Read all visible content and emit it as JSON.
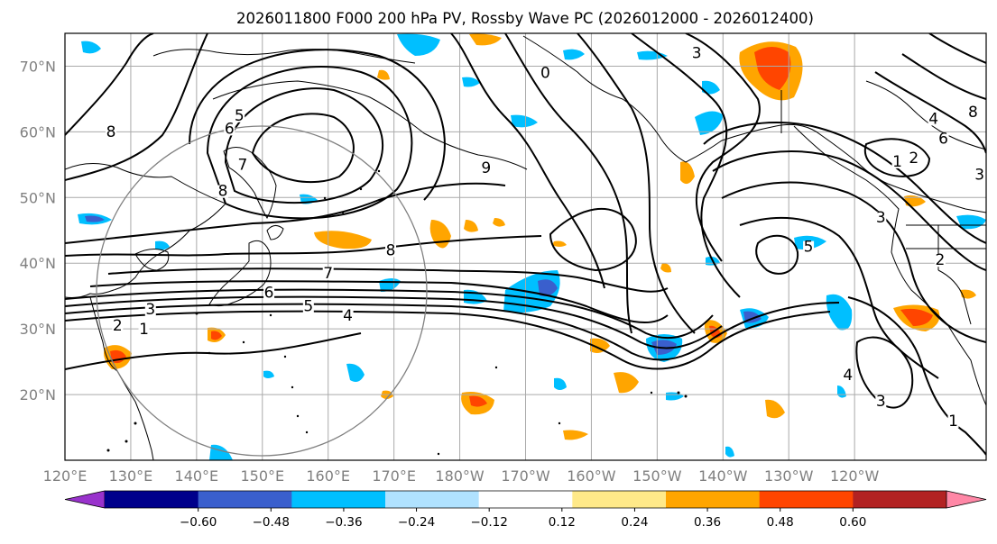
{
  "title": "2026011800 F000 200 hPa PV, Rossby Wave PC (2026012000 - 2026012400)",
  "map": {
    "lon_labels": [
      "120°E",
      "130°E",
      "140°E",
      "150°E",
      "160°E",
      "170°E",
      "180°W",
      "170°W",
      "160°W",
      "150°W",
      "140°W",
      "130°W",
      "120°W"
    ],
    "lat_labels": [
      "70°N",
      "60°N",
      "50°N",
      "40°N",
      "30°N",
      "20°N"
    ],
    "lon_values": [
      120,
      130,
      140,
      150,
      160,
      170,
      180,
      190,
      200,
      210,
      220,
      230,
      240
    ],
    "lat_values": [
      70,
      60,
      50,
      40,
      30,
      20
    ],
    "lon_range": [
      120,
      260
    ],
    "lat_range": [
      10,
      75
    ],
    "grid": true,
    "contour_labels": [
      {
        "text": "8",
        "lon": 127,
        "lat": 59.5
      },
      {
        "text": "5",
        "lon": 146.5,
        "lat": 62
      },
      {
        "text": "6",
        "lon": 145,
        "lat": 60
      },
      {
        "text": "7",
        "lon": 147,
        "lat": 54.5
      },
      {
        "text": "8",
        "lon": 144,
        "lat": 50.5
      },
      {
        "text": "9",
        "lon": 184,
        "lat": 54
      },
      {
        "text": "0",
        "lon": 193,
        "lat": 68.5
      },
      {
        "text": "3",
        "lon": 216,
        "lat": 71.5
      },
      {
        "text": "8",
        "lon": 169.5,
        "lat": 41.5
      },
      {
        "text": "7",
        "lon": 160,
        "lat": 38
      },
      {
        "text": "6",
        "lon": 151,
        "lat": 35
      },
      {
        "text": "5",
        "lon": 157,
        "lat": 33
      },
      {
        "text": "4",
        "lon": 163,
        "lat": 31.5
      },
      {
        "text": "3",
        "lon": 133,
        "lat": 32.5
      },
      {
        "text": "2",
        "lon": 128,
        "lat": 30
      },
      {
        "text": "1",
        "lon": 132,
        "lat": 29.5
      },
      {
        "text": "5",
        "lon": 233,
        "lat": 42
      },
      {
        "text": "3",
        "lon": 244,
        "lat": 46.5
      },
      {
        "text": "2",
        "lon": 253,
        "lat": 40
      },
      {
        "text": "1",
        "lon": 246.5,
        "lat": 55
      },
      {
        "text": "2",
        "lon": 249,
        "lat": 55.5
      },
      {
        "text": "4",
        "lon": 252,
        "lat": 61.5
      },
      {
        "text": "6",
        "lon": 253.5,
        "lat": 58.5
      },
      {
        "text": "8",
        "lon": 258,
        "lat": 62.5
      },
      {
        "text": "3",
        "lon": 259,
        "lat": 53
      },
      {
        "text": "4",
        "lon": 239,
        "lat": 22.5
      },
      {
        "text": "3",
        "lon": 244,
        "lat": 18.5
      },
      {
        "text": "1",
        "lon": 255,
        "lat": 15.5
      }
    ],
    "colors": {
      "grid": "#aaaaaa",
      "land": "#000000",
      "contour": "#000000",
      "circle": "#808080"
    }
  },
  "colorbar": {
    "tick_labels": [
      "−0.60",
      "−0.48",
      "−0.36",
      "−0.24",
      "−0.12",
      "0.12",
      "0.24",
      "0.36",
      "0.48",
      "0.60"
    ],
    "bounds": [
      -0.6,
      -0.48,
      -0.36,
      -0.24,
      -0.12,
      0.12,
      0.24,
      0.36,
      0.48,
      0.6
    ],
    "colors": [
      "#9932cc",
      "#00008b",
      "#3a5fcd",
      "#00bfff",
      "#b0e2ff",
      "#ffffff",
      "#ffe989",
      "#ffa500",
      "#ff4500",
      "#b22222",
      "#ff87a6"
    ],
    "extend": "both"
  }
}
